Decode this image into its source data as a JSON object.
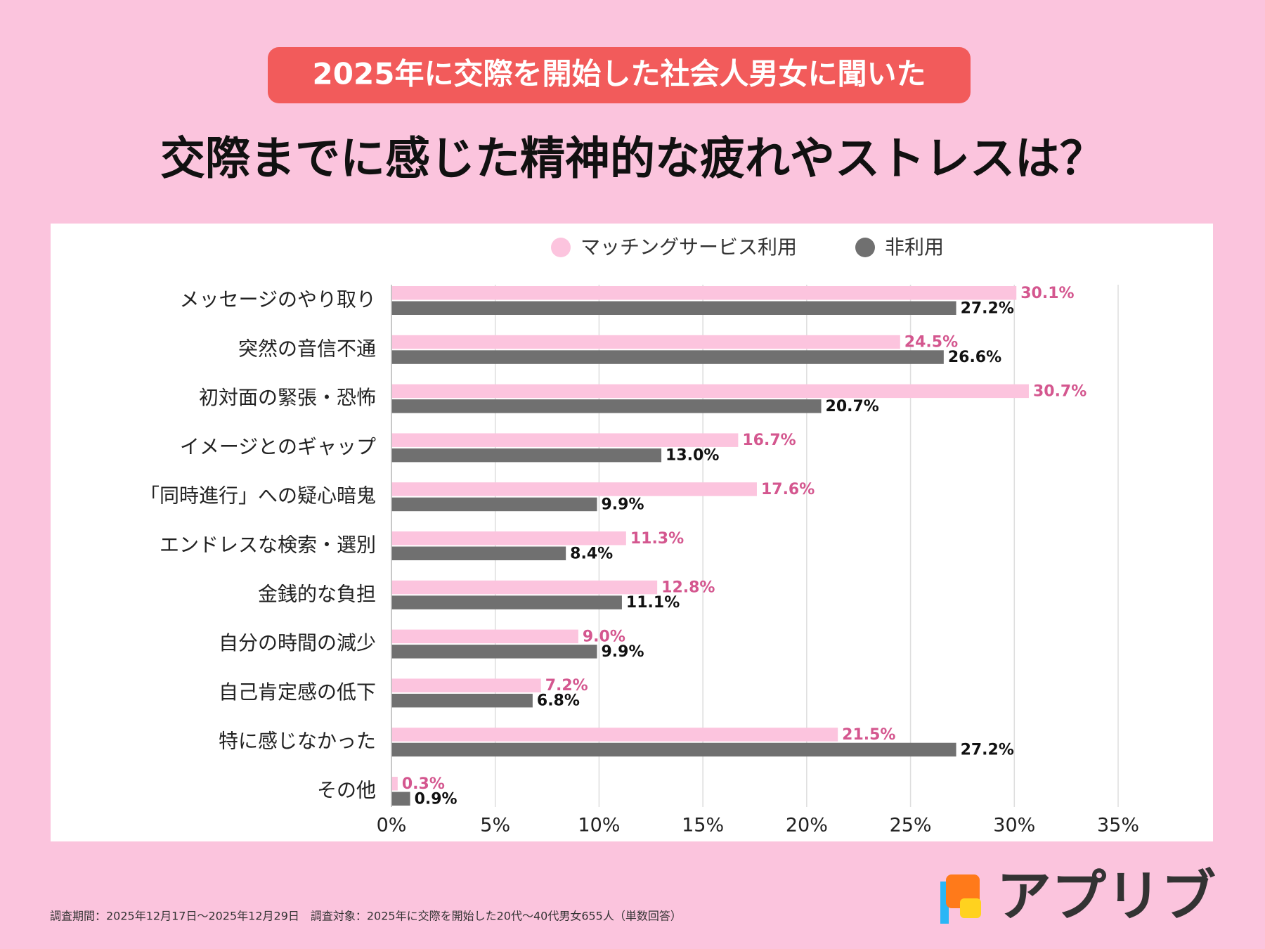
{
  "chart_data": {
    "type": "hbar",
    "badge": "2025年に交際を開始した社会人男女に聞いた",
    "title": "交際までに感じた精神的な疲れやストレスは？",
    "categories": [
      "メッセージのやり取り",
      "突然の音信不通",
      "初対面の緊張・恐怖",
      "イメージとのギャップ",
      "「同時進行」への疑心暗鬼",
      "エンドレスな検索・選別",
      "金銭的な負担",
      "自分の時間の減少",
      "自己肯定感の低下",
      "特に感じなかった",
      "その他"
    ],
    "series": [
      {
        "name": "マッチングサービス利用",
        "color": "#fcc4de",
        "label_color": "#d4578f",
        "values": [
          30.1,
          24.5,
          30.7,
          16.7,
          17.6,
          11.3,
          12.8,
          9.0,
          7.2,
          21.5,
          0.3
        ],
        "value_labels": [
          "30.1%",
          "24.5%",
          "30.7%",
          "16.7%",
          "17.6%",
          "11.3%",
          "12.8%",
          "9.0%",
          "7.2%",
          "21.5%",
          "0.3%"
        ]
      },
      {
        "name": "非利用",
        "color": "#707070",
        "label_color": "#111111",
        "values": [
          27.2,
          26.6,
          20.7,
          13.0,
          9.9,
          8.4,
          11.1,
          9.9,
          6.8,
          27.2,
          0.9
        ],
        "value_labels": [
          "27.2%",
          "26.6%",
          "20.7%",
          "13.0%",
          "9.9%",
          "8.4%",
          "11.1%",
          "9.9%",
          "6.8%",
          "27.2%",
          "0.9%"
        ]
      }
    ],
    "xlim": [
      0,
      35
    ],
    "xticks": [
      {
        "value": 0,
        "label": "0%"
      },
      {
        "value": 5,
        "label": "5%"
      },
      {
        "value": 10,
        "label": "10%"
      },
      {
        "value": 15,
        "label": "15%"
      },
      {
        "value": 20,
        "label": "20%"
      },
      {
        "value": 25,
        "label": "25%"
      },
      {
        "value": 30,
        "label": "30%"
      },
      {
        "value": 35,
        "label": "35%"
      }
    ],
    "grid": true,
    "note": "調査期間：2025年12月17日〜2025年12月29日　調査対象：2025年に交際を開始した20代〜40代男女655人（単数回答）",
    "brand": "アプリブ"
  }
}
